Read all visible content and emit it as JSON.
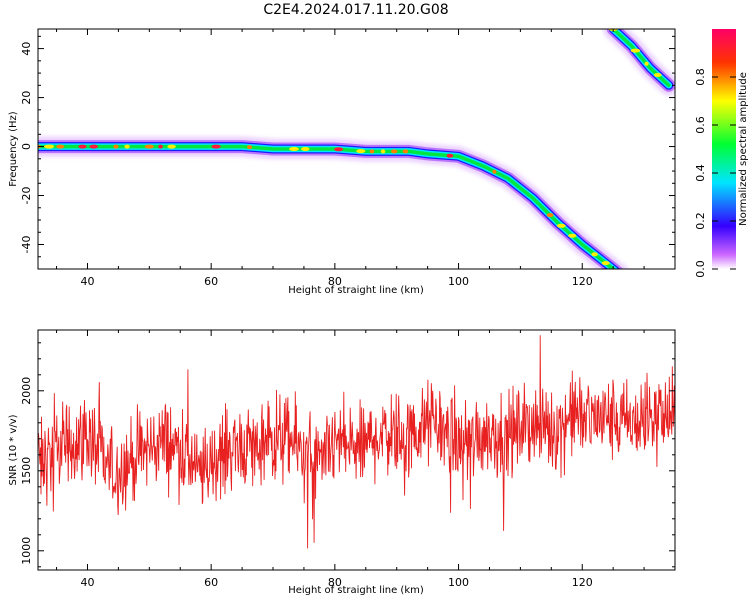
{
  "title": "C2E4.2024.017.11.20.G08",
  "chart_data": [
    {
      "type": "heatmap",
      "xlabel": "Height of straight line (km)",
      "ylabel": "Frequency (Hz)",
      "xlim": [
        32,
        135
      ],
      "ylim": [
        -50,
        48
      ],
      "xticks": [
        40,
        60,
        80,
        100,
        120
      ],
      "yticks": [
        -40,
        -20,
        0,
        20,
        40
      ],
      "colorbar": {
        "label": "Normalized spectral amplitude",
        "range": [
          0.0,
          1.0
        ],
        "ticks": [
          0.0,
          0.2,
          0.4,
          0.6,
          0.8
        ],
        "colormap": [
          "#ffffff",
          "#cc66ff",
          "#3300ff",
          "#00e5ff",
          "#00ff33",
          "#ffff00",
          "#ff3300",
          "#ff0066"
        ]
      },
      "traces": [
        {
          "x": [
            32,
            50,
            65,
            70,
            80,
            85,
            90,
            92,
            95,
            100,
            104,
            108,
            112,
            116,
            120,
            124,
            126
          ],
          "y": [
            0,
            0,
            0,
            -1,
            -1,
            -2,
            -2,
            -2,
            -3,
            -4,
            -8,
            -13,
            -21,
            -31,
            -40,
            -48,
            -52
          ]
        },
        {
          "x": [
            125,
            128,
            131,
            134
          ],
          "y": [
            48,
            41,
            32,
            25
          ]
        }
      ]
    },
    {
      "type": "line",
      "xlabel": "Height of straight line (km)",
      "ylabel": "SNR (10 * v/v)",
      "xlim": [
        32,
        135
      ],
      "ylim": [
        880,
        2380
      ],
      "xticks": [
        40,
        60,
        80,
        100,
        120
      ],
      "yticks": [
        1000,
        1500,
        2000
      ],
      "color": "#e82020",
      "series": [
        {
          "x": [
            32,
            36,
            40,
            44,
            48,
            52,
            56,
            58,
            60,
            64,
            68,
            72,
            76,
            78,
            80,
            84,
            88,
            92,
            96,
            100,
            104,
            108,
            112,
            116,
            119,
            120,
            124,
            128,
            132,
            135
          ],
          "y": [
            1530,
            1650,
            1720,
            1480,
            1590,
            1690,
            1620,
            1460,
            1550,
            1670,
            1640,
            1700,
            1600,
            1520,
            1680,
            1630,
            1760,
            1700,
            1820,
            1650,
            1740,
            1720,
            1800,
            1760,
            1870,
            1830,
            1830,
            1790,
            1850,
            1840
          ]
        }
      ]
    }
  ]
}
